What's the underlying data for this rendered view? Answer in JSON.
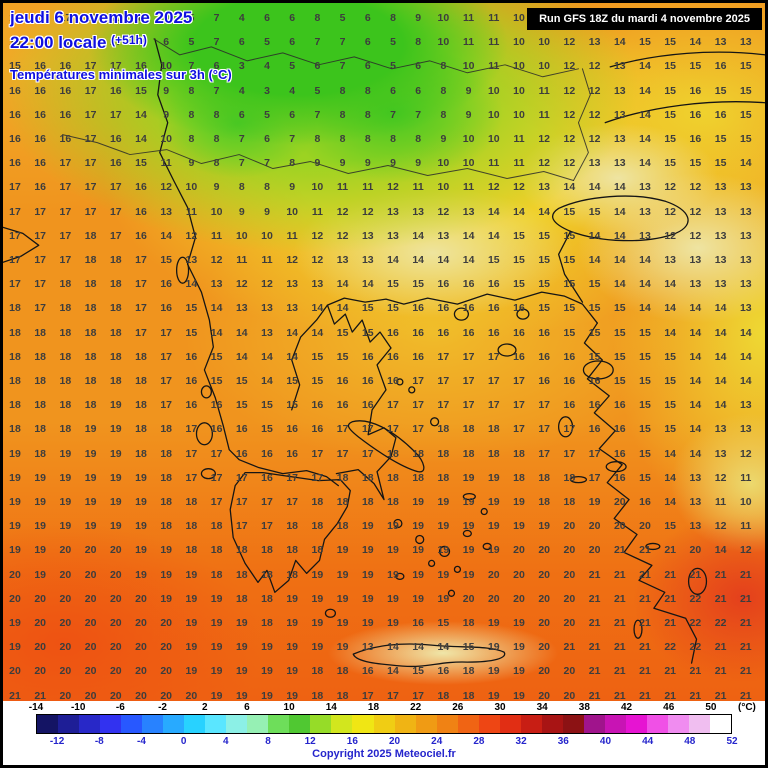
{
  "header": {
    "date_line": "jeudi 6 novembre 2025",
    "time_line": "22:00 locale",
    "time_offset": "(+51h)",
    "subtitle": "Températures minimales sur 3h (°C)",
    "run_info": "Run GFS 18Z du mardi 4 novembre 2025"
  },
  "map": {
    "temperature_grid": {
      "rows": [
        [
          16,
          16,
          17,
          16,
          16,
          8,
          3,
          5,
          7,
          4,
          6,
          6,
          8,
          5,
          6,
          8,
          9,
          10,
          11,
          11,
          10,
          12,
          13,
          14,
          15,
          15,
          15,
          15,
          13,
          14
        ],
        [
          16,
          16,
          17,
          17,
          17,
          16,
          6,
          5,
          7,
          6,
          5,
          6,
          7,
          7,
          6,
          5,
          8,
          10,
          11,
          11,
          10,
          10,
          12,
          13,
          14,
          15,
          15,
          14,
          13,
          13
        ],
        [
          15,
          16,
          16,
          17,
          17,
          16,
          10,
          7,
          6,
          3,
          4,
          5,
          6,
          7,
          6,
          5,
          6,
          8,
          10,
          11,
          10,
          10,
          12,
          12,
          13,
          14,
          15,
          15,
          16,
          15
        ],
        [
          16,
          16,
          16,
          17,
          16,
          15,
          9,
          8,
          7,
          4,
          3,
          4,
          5,
          8,
          8,
          6,
          6,
          8,
          9,
          10,
          10,
          11,
          12,
          12,
          13,
          14,
          15,
          16,
          15,
          15
        ],
        [
          16,
          16,
          16,
          17,
          17,
          14,
          9,
          8,
          8,
          6,
          5,
          6,
          7,
          8,
          8,
          7,
          7,
          8,
          9,
          10,
          10,
          11,
          12,
          12,
          13,
          14,
          15,
          16,
          16,
          15
        ],
        [
          16,
          16,
          16,
          17,
          16,
          14,
          10,
          8,
          8,
          7,
          6,
          7,
          8,
          8,
          8,
          8,
          8,
          9,
          10,
          10,
          11,
          12,
          12,
          12,
          13,
          14,
          15,
          16,
          15,
          15
        ],
        [
          16,
          16,
          17,
          17,
          16,
          15,
          11,
          9,
          8,
          7,
          7,
          8,
          9,
          9,
          9,
          9,
          9,
          10,
          10,
          11,
          11,
          12,
          12,
          13,
          13,
          14,
          15,
          15,
          15,
          14
        ],
        [
          17,
          16,
          17,
          17,
          17,
          16,
          12,
          10,
          9,
          8,
          8,
          9,
          10,
          11,
          11,
          12,
          11,
          10,
          11,
          12,
          12,
          13,
          14,
          14,
          14,
          13,
          12,
          12,
          13,
          13
        ],
        [
          17,
          17,
          17,
          17,
          17,
          16,
          13,
          11,
          10,
          9,
          9,
          10,
          11,
          12,
          12,
          13,
          13,
          12,
          13,
          14,
          14,
          14,
          15,
          15,
          14,
          13,
          12,
          12,
          13,
          13
        ],
        [
          17,
          17,
          17,
          18,
          17,
          16,
          14,
          12,
          11,
          10,
          10,
          11,
          12,
          12,
          13,
          13,
          14,
          13,
          14,
          14,
          15,
          15,
          15,
          14,
          14,
          13,
          12,
          12,
          13,
          13
        ],
        [
          17,
          17,
          17,
          18,
          18,
          17,
          15,
          13,
          12,
          11,
          11,
          12,
          12,
          13,
          13,
          14,
          14,
          14,
          14,
          15,
          15,
          15,
          15,
          14,
          14,
          14,
          13,
          13,
          13,
          13
        ],
        [
          17,
          17,
          18,
          18,
          18,
          17,
          16,
          14,
          13,
          12,
          12,
          13,
          13,
          14,
          14,
          15,
          15,
          16,
          16,
          16,
          15,
          15,
          15,
          15,
          14,
          14,
          14,
          13,
          13,
          13
        ],
        [
          18,
          17,
          18,
          18,
          18,
          17,
          16,
          15,
          14,
          13,
          13,
          13,
          14,
          14,
          15,
          15,
          16,
          16,
          16,
          16,
          16,
          15,
          15,
          15,
          15,
          14,
          14,
          14,
          14,
          13
        ],
        [
          18,
          18,
          18,
          18,
          18,
          17,
          17,
          15,
          14,
          14,
          13,
          14,
          14,
          15,
          15,
          16,
          16,
          16,
          16,
          16,
          16,
          16,
          15,
          15,
          15,
          15,
          14,
          14,
          14,
          14
        ],
        [
          18,
          18,
          18,
          18,
          18,
          18,
          17,
          16,
          15,
          14,
          14,
          14,
          15,
          15,
          16,
          16,
          16,
          17,
          17,
          17,
          16,
          16,
          16,
          15,
          15,
          15,
          15,
          14,
          14,
          14
        ],
        [
          18,
          18,
          18,
          18,
          18,
          18,
          17,
          16,
          15,
          15,
          14,
          15,
          15,
          16,
          16,
          16,
          17,
          17,
          17,
          17,
          17,
          16,
          16,
          16,
          15,
          15,
          15,
          14,
          14,
          14
        ],
        [
          18,
          18,
          18,
          18,
          19,
          18,
          17,
          16,
          16,
          15,
          15,
          15,
          16,
          16,
          16,
          17,
          17,
          17,
          17,
          17,
          17,
          17,
          16,
          16,
          16,
          15,
          15,
          14,
          14,
          13
        ],
        [
          18,
          18,
          18,
          19,
          19,
          18,
          18,
          17,
          16,
          16,
          15,
          16,
          16,
          17,
          17,
          17,
          17,
          18,
          18,
          18,
          17,
          17,
          17,
          16,
          16,
          15,
          15,
          14,
          13,
          13
        ],
        [
          19,
          18,
          19,
          19,
          19,
          18,
          18,
          17,
          17,
          16,
          16,
          16,
          17,
          17,
          17,
          18,
          18,
          18,
          18,
          18,
          18,
          17,
          17,
          17,
          16,
          15,
          14,
          14,
          13,
          12
        ],
        [
          19,
          19,
          19,
          19,
          19,
          19,
          18,
          17,
          17,
          17,
          16,
          17,
          17,
          18,
          18,
          18,
          18,
          18,
          19,
          19,
          18,
          18,
          18,
          17,
          16,
          15,
          14,
          13,
          12,
          11
        ],
        [
          19,
          19,
          19,
          19,
          19,
          19,
          18,
          18,
          17,
          17,
          17,
          17,
          18,
          18,
          18,
          18,
          19,
          19,
          19,
          19,
          19,
          18,
          18,
          19,
          20,
          16,
          14,
          13,
          11,
          10
        ],
        [
          19,
          19,
          19,
          19,
          19,
          19,
          18,
          18,
          18,
          17,
          17,
          18,
          18,
          18,
          19,
          19,
          19,
          19,
          19,
          19,
          19,
          19,
          20,
          20,
          20,
          20,
          15,
          13,
          12,
          11
        ],
        [
          19,
          19,
          20,
          20,
          20,
          19,
          19,
          18,
          18,
          18,
          18,
          18,
          18,
          19,
          19,
          19,
          19,
          19,
          19,
          19,
          20,
          20,
          20,
          20,
          21,
          21,
          21,
          20,
          14,
          12
        ],
        [
          20,
          19,
          20,
          20,
          20,
          19,
          19,
          19,
          18,
          18,
          18,
          18,
          19,
          19,
          19,
          19,
          19,
          19,
          19,
          20,
          20,
          20,
          20,
          21,
          21,
          21,
          21,
          21,
          21,
          21
        ],
        [
          20,
          20,
          20,
          20,
          20,
          20,
          19,
          19,
          19,
          18,
          18,
          19,
          19,
          19,
          19,
          19,
          19,
          19,
          20,
          20,
          20,
          20,
          20,
          21,
          21,
          21,
          21,
          22,
          21,
          21
        ],
        [
          19,
          20,
          20,
          20,
          20,
          20,
          20,
          19,
          19,
          19,
          18,
          19,
          19,
          19,
          19,
          19,
          16,
          15,
          18,
          19,
          19,
          20,
          20,
          21,
          21,
          21,
          21,
          22,
          22,
          21
        ],
        [
          19,
          20,
          20,
          20,
          20,
          20,
          20,
          19,
          19,
          19,
          19,
          19,
          19,
          19,
          13,
          14,
          14,
          14,
          15,
          19,
          19,
          20,
          21,
          21,
          21,
          21,
          22,
          22,
          21,
          21
        ],
        [
          20,
          20,
          20,
          20,
          20,
          20,
          20,
          19,
          19,
          19,
          19,
          19,
          18,
          18,
          16,
          14,
          15,
          16,
          18,
          19,
          19,
          20,
          20,
          21,
          21,
          21,
          21,
          21,
          21,
          21
        ],
        [
          21,
          21,
          20,
          20,
          20,
          20,
          20,
          20,
          19,
          19,
          19,
          19,
          18,
          18,
          17,
          17,
          17,
          18,
          18,
          19,
          19,
          20,
          20,
          21,
          21,
          21,
          21,
          21,
          21,
          21
        ]
      ]
    }
  },
  "scale": {
    "unit_label": "(°C)",
    "top_labels": [
      "-14",
      "-10",
      "-6",
      "-2",
      "2",
      "6",
      "10",
      "14",
      "18",
      "22",
      "26",
      "30",
      "34",
      "38",
      "42",
      "46",
      "50"
    ],
    "bottom_labels": [
      "-12",
      "-8",
      "-4",
      "0",
      "4",
      "8",
      "12",
      "16",
      "20",
      "24",
      "28",
      "32",
      "36",
      "40",
      "44",
      "48",
      "52"
    ],
    "segment_colors": [
      "#141464",
      "#1e1e96",
      "#2828c8",
      "#3232f0",
      "#2858ff",
      "#2882ff",
      "#28aaff",
      "#28d2ff",
      "#5ae6ff",
      "#8cf0e6",
      "#96f0b4",
      "#6ede5a",
      "#50c832",
      "#96dc28",
      "#d2e61e",
      "#f0e614",
      "#f0cd14",
      "#f0b414",
      "#f09b14",
      "#f08214",
      "#f06414",
      "#ee4614",
      "#e12e14",
      "#c81e14",
      "#a81414",
      "#8c1214",
      "#a0148c",
      "#c814b4",
      "#e614d2",
      "#f050e6",
      "#f08cf0",
      "#f0bef0",
      "#ffffff"
    ]
  },
  "footer": {
    "copyright": "Copyright 2025 Meteociel.fr"
  }
}
